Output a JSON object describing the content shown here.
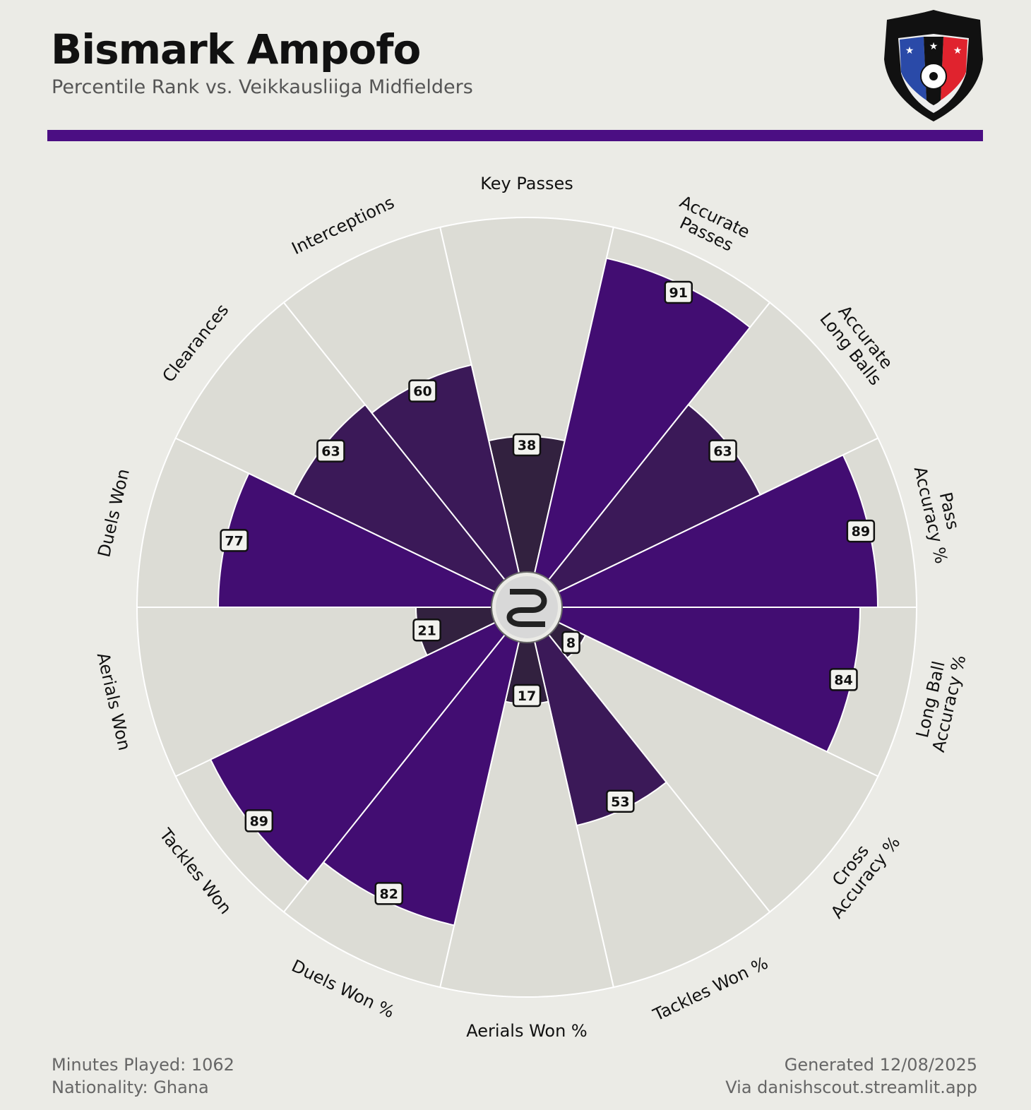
{
  "header": {
    "player_name": "Bismark Ampofo",
    "subtitle": "Percentile Rank vs. Veikkausliiga Midfielders"
  },
  "crest": {
    "icon": "fc-inter-turku-crest-icon"
  },
  "center_logo": {
    "icon": "danishscout-logo-icon"
  },
  "colors": {
    "accent": "#4B0E83",
    "background": "#EBEBE6",
    "slice_bg": "#DCDCD5",
    "high": "#420D72",
    "mid": "#3B1958",
    "low": "#32213F"
  },
  "chart_data": {
    "type": "pie",
    "subtype": "polar-bar (pizza)",
    "title": "Bismark Ampofo",
    "subtitle": "Percentile Rank vs. Veikkausliiga Midfielders",
    "range": [
      0,
      100
    ],
    "categories": [
      "Key Passes",
      "Accurate Passes",
      "Accurate Long Balls",
      "Pass Accuracy %",
      "Long Ball Accuracy %",
      "Cross Accuracy %",
      "Tackles Won %",
      "Aerials Won %",
      "Duels Won %",
      "Tackles Won",
      "Aerials Won",
      "Duels Won",
      "Clearances",
      "Interceptions"
    ],
    "label_lines": [
      [
        "Key Passes"
      ],
      [
        "Accurate",
        "Passes"
      ],
      [
        "Accurate",
        "Long Balls"
      ],
      [
        "Pass",
        "Accuracy %"
      ],
      [
        "Long Ball",
        "Accuracy %"
      ],
      [
        "Cross",
        "Accuracy %"
      ],
      [
        "Tackles Won %"
      ],
      [
        "Aerials Won %"
      ],
      [
        "Duels Won %"
      ],
      [
        "Tackles Won"
      ],
      [
        "Aerials Won"
      ],
      [
        "Duels Won"
      ],
      [
        "Clearances"
      ],
      [
        "Interceptions"
      ]
    ],
    "values": [
      38,
      91,
      63,
      89,
      84,
      8,
      53,
      17,
      82,
      89,
      21,
      77,
      63,
      60
    ],
    "value_labels": [
      "38",
      "91",
      "63",
      "89",
      "84",
      "8",
      "53",
      "17",
      "82",
      "89",
      "21",
      "77",
      "63",
      "60"
    ]
  },
  "footer": {
    "minutes": "Minutes Played: 1062",
    "nationality": "Nationality: Ghana",
    "generated": "Generated 12/08/2025",
    "source": "Via danishscout.streamlit.app"
  }
}
